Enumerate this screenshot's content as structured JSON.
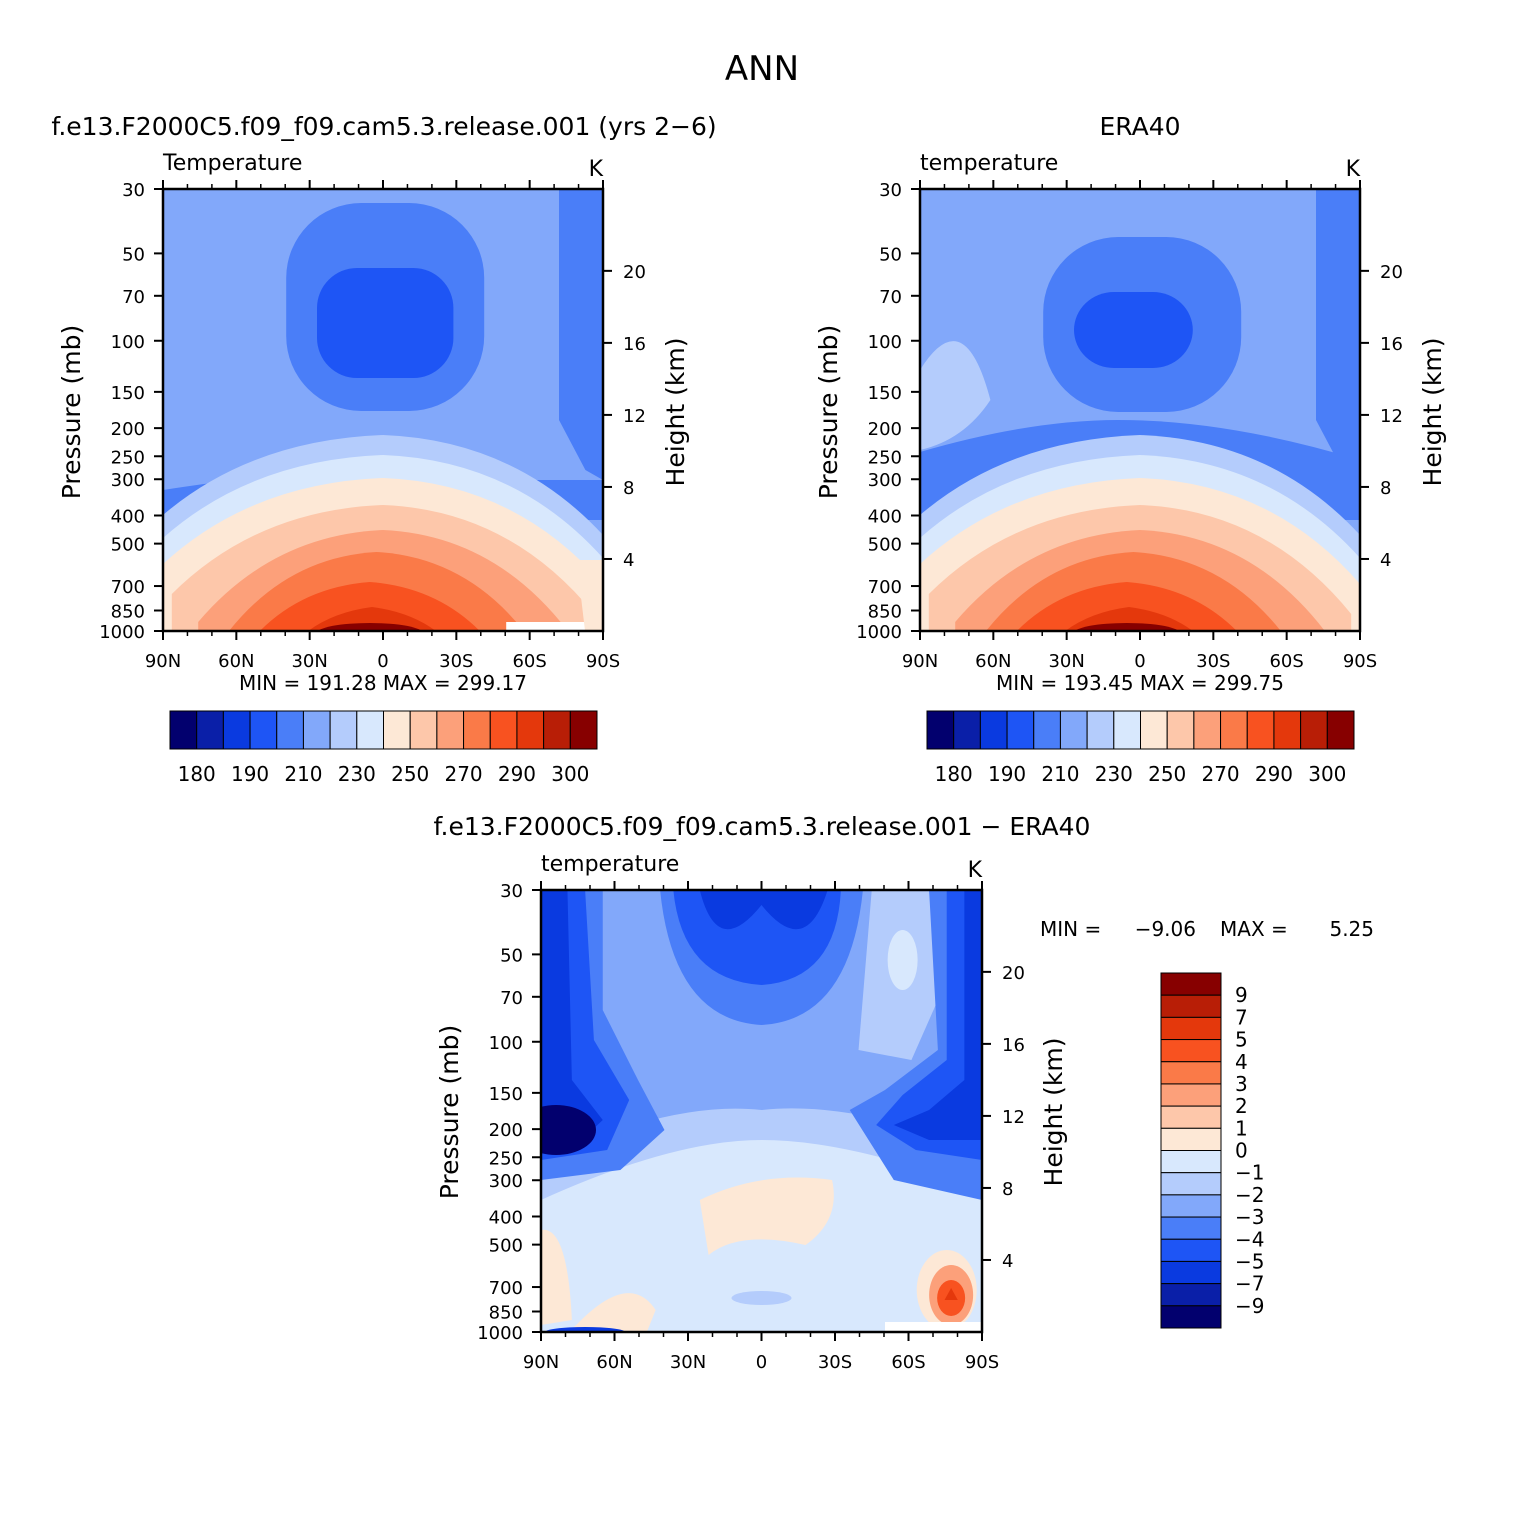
{
  "title": "ANN",
  "colors": {
    "temp_palette": [
      "#02006e",
      "#0a1fa8",
      "#0a3ae0",
      "#1e55f5",
      "#4a7ef8",
      "#82a8fa",
      "#b4ccfc",
      "#d8e8fd",
      "#fde8d6",
      "#fdc7aa",
      "#fca07a",
      "#fa7a48",
      "#f85220",
      "#e4380c",
      "#b81e06",
      "#870000"
    ],
    "diff_palette": [
      "#02006e",
      "#0a1fa8",
      "#0a3ae0",
      "#1e55f5",
      "#4a7ef8",
      "#82a8fa",
      "#b4ccfc",
      "#d8e8fd",
      "#fde8d6",
      "#fdc7aa",
      "#fca07a",
      "#fa7a48",
      "#f85220",
      "#e4380c",
      "#b81e06",
      "#870000"
    ]
  },
  "panels": [
    {
      "id": "model",
      "title": "f.e13.F2000C5.f09_f09.cam5.3.release.001 (yrs 2−6)",
      "left_label": "Temperature",
      "units": "K",
      "ylabel": "Pressure (mb)",
      "ylabel_right": "Height (km)",
      "minmax": "MIN = 191.28   MAX = 299.17"
    },
    {
      "id": "obs",
      "title": "ERA40",
      "left_label": "temperature",
      "units": "K",
      "ylabel": "Pressure (mb)",
      "ylabel_right": "Height (km)",
      "minmax": "MIN = 193.45   MAX = 299.75"
    },
    {
      "id": "diff",
      "title": "f.e13.F2000C5.f09_f09.cam5.3.release.001 − ERA40",
      "left_label": "temperature",
      "units": "K",
      "ylabel": "Pressure (mb)",
      "ylabel_right": "Height (km)",
      "min_label": "MIN =",
      "min_value": "−9.06",
      "max_label": "MAX =",
      "max_value": "5.25"
    }
  ],
  "chart_data": [
    {
      "type": "heatmap",
      "title": "f.e13.F2000C5.f09_f09.cam5.3.release.001 (yrs 2−6)",
      "xlabel": "",
      "ylabel": "Pressure (mb)",
      "ylabel_right": "Height (km)",
      "x_ticks": [
        "90N",
        "60N",
        "30N",
        "0",
        "30S",
        "60S",
        "90S"
      ],
      "x_values": [
        90,
        60,
        30,
        0,
        -30,
        -60,
        -90
      ],
      "y_ticks": [
        30,
        50,
        70,
        100,
        150,
        200,
        250,
        300,
        400,
        500,
        700,
        850,
        1000
      ],
      "y_scale": "log",
      "y_range": [
        1000,
        30
      ],
      "right_ticks": [
        4,
        8,
        12,
        16,
        20
      ],
      "colorbar_ticks": [
        "180",
        "190",
        "210",
        "230",
        "250",
        "270",
        "290",
        "300"
      ],
      "min": 191.28,
      "max": 299.17
    },
    {
      "type": "heatmap",
      "title": "ERA40",
      "xlabel": "",
      "ylabel": "Pressure (mb)",
      "ylabel_right": "Height (km)",
      "x_ticks": [
        "90N",
        "60N",
        "30N",
        "0",
        "30S",
        "60S",
        "90S"
      ],
      "x_values": [
        90,
        60,
        30,
        0,
        -30,
        -60,
        -90
      ],
      "y_ticks": [
        30,
        50,
        70,
        100,
        150,
        200,
        250,
        300,
        400,
        500,
        700,
        850,
        1000
      ],
      "y_scale": "log",
      "y_range": [
        1000,
        30
      ],
      "right_ticks": [
        4,
        8,
        12,
        16,
        20
      ],
      "colorbar_ticks": [
        "180",
        "190",
        "210",
        "230",
        "250",
        "270",
        "290",
        "300"
      ],
      "min": 193.45,
      "max": 299.75
    },
    {
      "type": "heatmap",
      "title": "f.e13.F2000C5.f09_f09.cam5.3.release.001 − ERA40",
      "xlabel": "",
      "ylabel": "Pressure (mb)",
      "ylabel_right": "Height (km)",
      "x_ticks": [
        "90N",
        "60N",
        "30N",
        "0",
        "30S",
        "60S",
        "90S"
      ],
      "x_values": [
        90,
        60,
        30,
        0,
        -30,
        -60,
        -90
      ],
      "y_ticks": [
        30,
        50,
        70,
        100,
        150,
        200,
        250,
        300,
        400,
        500,
        700,
        850,
        1000
      ],
      "y_scale": "log",
      "y_range": [
        1000,
        30
      ],
      "right_ticks": [
        4,
        8,
        12,
        16,
        20
      ],
      "colorbar_ticks": [
        "9",
        "7",
        "5",
        "4",
        "3",
        "2",
        "1",
        "0",
        "−1",
        "−2",
        "−3",
        "−4",
        "−5",
        "−7",
        "−9"
      ],
      "min": -9.06,
      "max": 5.25
    }
  ]
}
